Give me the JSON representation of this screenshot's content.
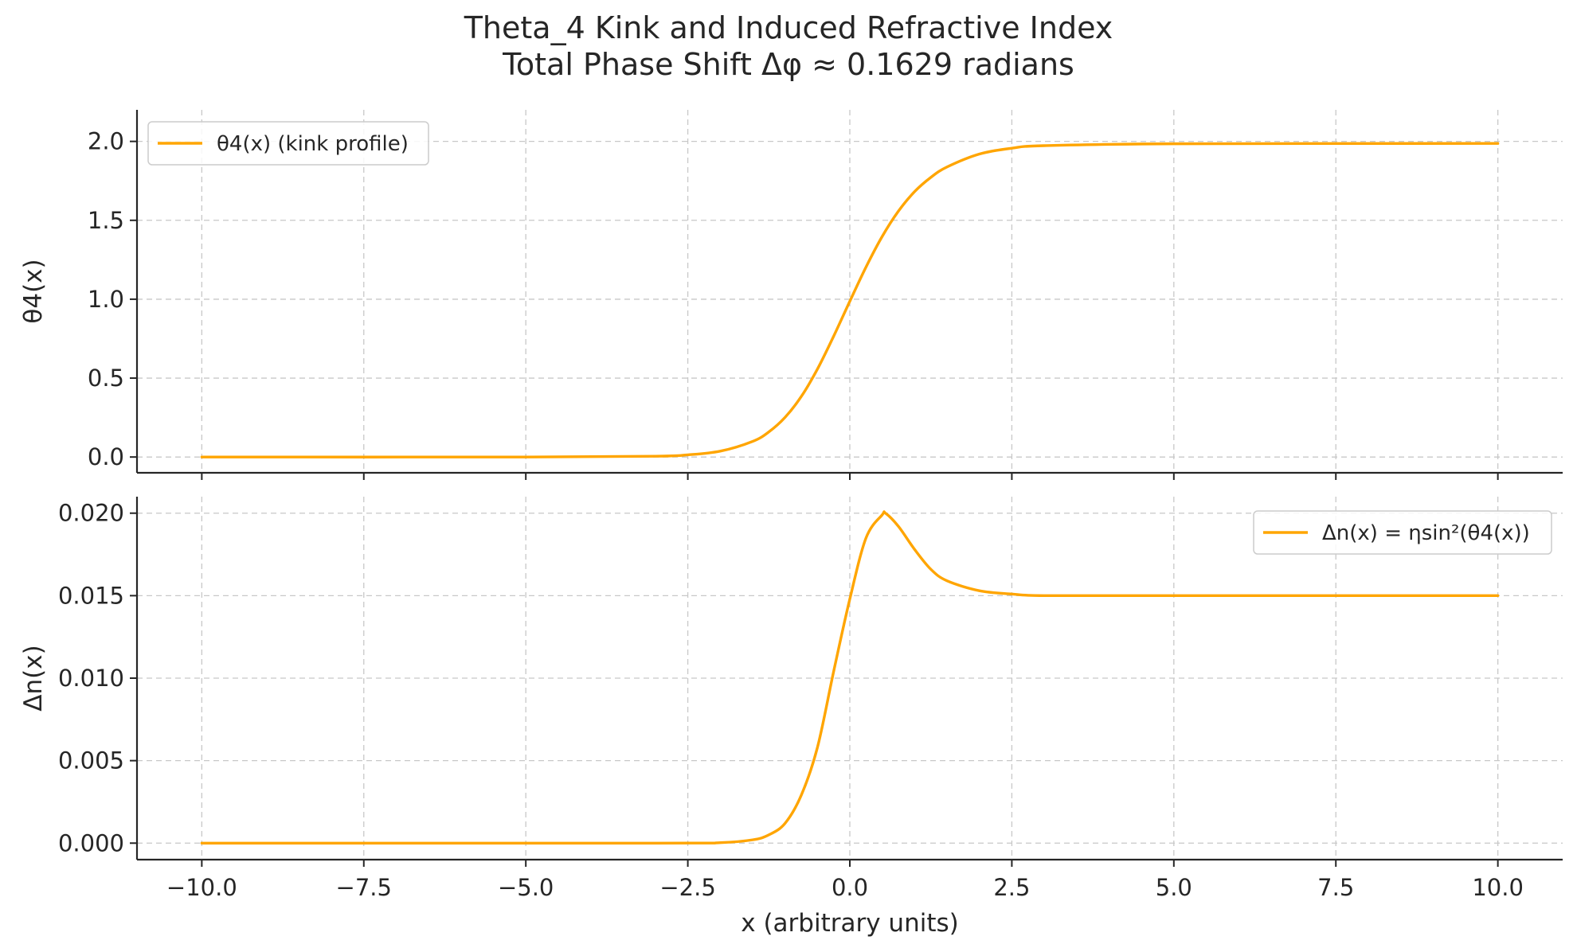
{
  "title_line1": "Theta_4 Kink and Induced Refractive Index",
  "title_line2": "Total Phase Shift Δφ ≈ 0.1629 radians",
  "colors": {
    "series": "#FFA500",
    "grid": "#c8c8c8",
    "axis": "#262626"
  },
  "chart_data": [
    {
      "type": "line",
      "ylabel": "θ4(x)",
      "ylim": [
        -0.1,
        2.2
      ],
      "yticks": [
        0.0,
        0.5,
        1.0,
        1.5,
        2.0
      ],
      "ytick_labels": [
        "0.0",
        "0.5",
        "1.0",
        "1.5",
        "2.0"
      ],
      "grid": true,
      "legend_position": "upper-left",
      "series": [
        {
          "name": "θ4(x) (kink profile)",
          "color": "#FFA500",
          "x": [
            -10,
            -5,
            -3,
            -2.5,
            -2,
            -1.5,
            -1.25,
            -1,
            -0.75,
            -0.5,
            -0.25,
            0,
            0.25,
            0.5,
            0.75,
            1,
            1.25,
            1.5,
            2,
            2.5,
            3,
            5,
            10
          ],
          "y": [
            0.0,
            0.0,
            0.005,
            0.014,
            0.037,
            0.099,
            0.159,
            0.251,
            0.383,
            0.557,
            0.765,
            0.987,
            1.204,
            1.398,
            1.558,
            1.682,
            1.772,
            1.838,
            1.92,
            1.957,
            1.973,
            1.985,
            1.987
          ]
        }
      ]
    },
    {
      "type": "line",
      "xlabel": "x (arbitrary units)",
      "ylabel": "Δn(x)",
      "xlim": [
        -11,
        11
      ],
      "ylim": [
        -0.001,
        0.021
      ],
      "xticks": [
        -10,
        -7.5,
        -5,
        -2.5,
        0,
        2.5,
        5,
        7.5,
        10
      ],
      "xtick_labels": [
        "−10.0",
        "−7.5",
        "−5.0",
        "−2.5",
        "0.0",
        "2.5",
        "5.0",
        "7.5",
        "10.0"
      ],
      "yticks": [
        0.0,
        0.005,
        0.01,
        0.015,
        0.02
      ],
      "ytick_labels": [
        "0.000",
        "0.005",
        "0.010",
        "0.015",
        "0.020"
      ],
      "grid": true,
      "legend_position": "upper-right",
      "series": [
        {
          "name": "Δn(x) = ηsin²(θ4(x))",
          "color": "#FFA500",
          "x": [
            -10,
            -3,
            -2,
            -1.5,
            -1.25,
            -1,
            -0.75,
            -0.5,
            -0.25,
            0,
            0.25,
            0.5,
            0.55,
            0.75,
            1,
            1.25,
            1.5,
            2,
            2.5,
            3,
            5,
            10
          ],
          "y": [
            0.0,
            0.0,
            3e-05,
            0.0002,
            0.0005,
            0.0012,
            0.0029,
            0.0058,
            0.0104,
            0.0148,
            0.0185,
            0.0199,
            0.02,
            0.0192,
            0.0178,
            0.0166,
            0.0159,
            0.0153,
            0.0151,
            0.015,
            0.015,
            0.015
          ]
        }
      ]
    }
  ]
}
